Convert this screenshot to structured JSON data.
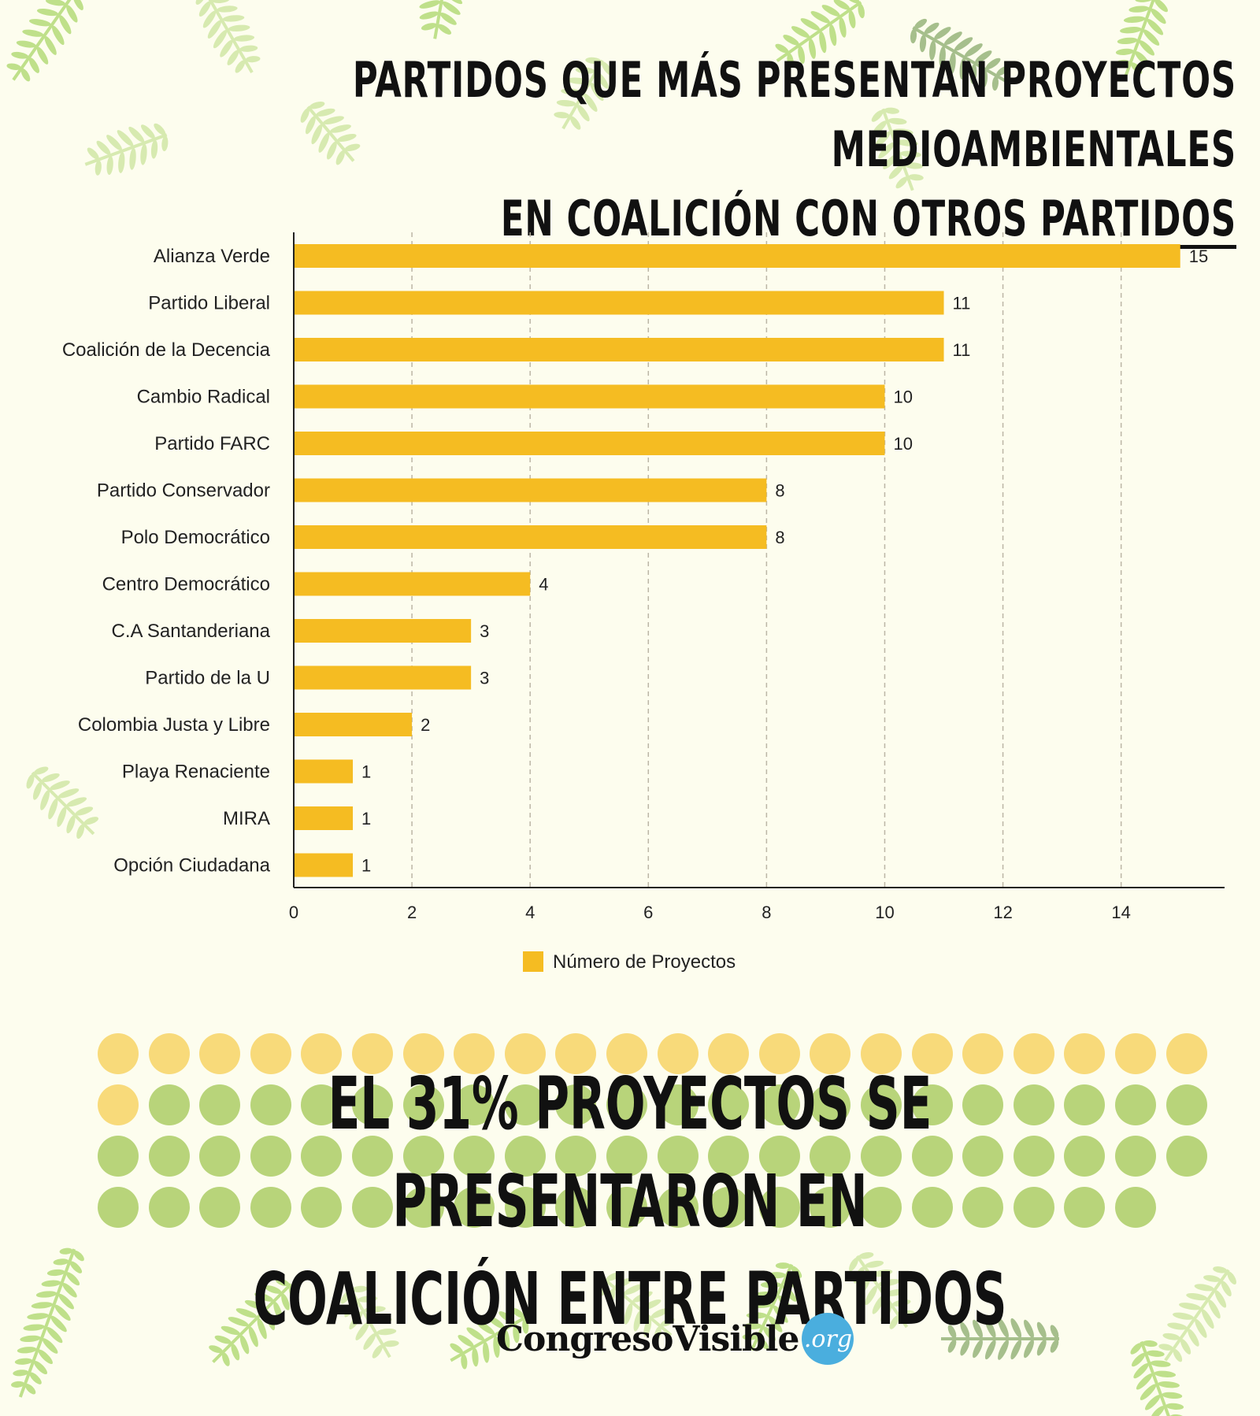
{
  "title": {
    "line1": "PARTIDOS QUE MÁS PRESENTAN PROYECTOS MEDIOAMBIENTALES",
    "line2_prefix": "EN ",
    "line2_underlined": "COALICIÓN CON OTROS PARTIDOS"
  },
  "chart_data": {
    "type": "bar",
    "orientation": "horizontal",
    "categories": [
      "Alianza Verde",
      "Partido Liberal",
      "Coalición de la Decencia",
      "Cambio Radical",
      "Partido FARC",
      "Partido Conservador",
      "Polo Democrático",
      "Centro Democrático",
      "C.A Santanderiana",
      "Partido de la U",
      "Colombia Justa y Libre",
      "Playa Renaciente",
      "MIRA",
      "Opción Ciudadana"
    ],
    "series": [
      {
        "name": "Número de Proyectos",
        "values": [
          15,
          11,
          11,
          10,
          10,
          8,
          8,
          4,
          3,
          3,
          2,
          1,
          1,
          1
        ],
        "color": "#f5bc22"
      }
    ],
    "xticks": [
      0,
      2,
      4,
      6,
      8,
      10,
      12,
      14
    ],
    "xlim": [
      0,
      15.75
    ],
    "grid": "vertical dashed",
    "legend": "bottom-center",
    "data_labels": true
  },
  "banner": {
    "line1": "EL 31% PROYECTOS SE PRESENTARON EN",
    "line2": "COALICIÓN ENTRE PARTIDOS"
  },
  "dots": {
    "yellow_count": 23,
    "row_counts": [
      22,
      22,
      22,
      21
    ],
    "yellow_color": "#f8da7a",
    "green_color": "#b8d47a"
  },
  "logo": {
    "text": "CongresoVisible",
    "badge": ".org",
    "badge_color": "#4aaede"
  },
  "colors": {
    "background": "#fdfdee",
    "bar": "#f5bc22",
    "leaf_light": "#d7eab0",
    "leaf_mid": "#bfe08a"
  }
}
